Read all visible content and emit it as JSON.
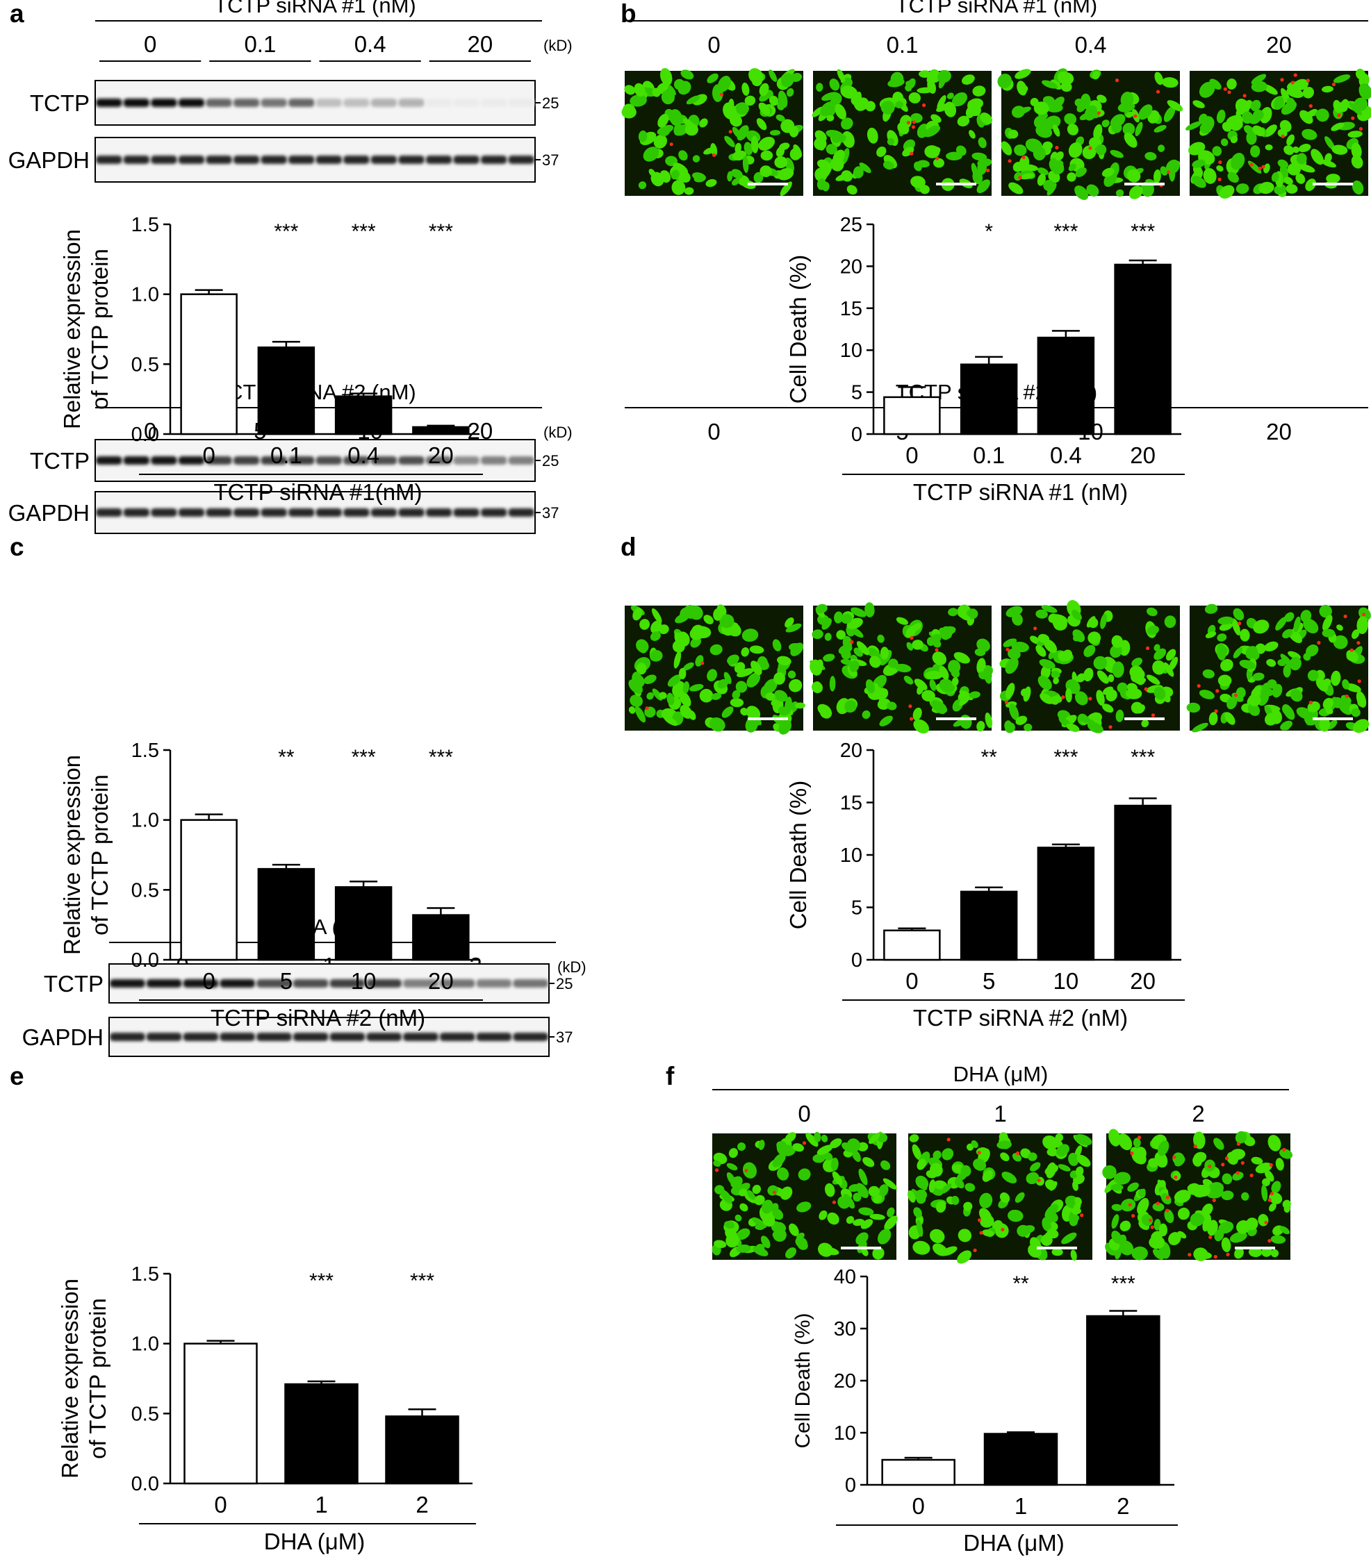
{
  "figure": {
    "panels": [
      {
        "letter": "a",
        "blot": {
          "header": "TCTP siRNA #1 (nM)",
          "groups": [
            "0",
            "0.1",
            "0.4",
            "20"
          ],
          "unit": "(kD)",
          "bands": [
            {
              "label": "TCTP",
              "marker": "25",
              "lane_intensity": [
                0.95,
                0.95,
                0.95,
                0.95,
                0.6,
                0.6,
                0.55,
                0.6,
                0.25,
                0.25,
                0.3,
                0.3,
                0.08,
                0.08,
                0.08,
                0.08
              ]
            },
            {
              "label": "GAPDH",
              "marker": "37",
              "lane_intensity": [
                0.85,
                0.85,
                0.85,
                0.85,
                0.85,
                0.85,
                0.85,
                0.85,
                0.85,
                0.85,
                0.85,
                0.85,
                0.85,
                0.85,
                0.85,
                0.85
              ]
            }
          ]
        },
        "chart_data": {
          "type": "bar",
          "categories": [
            "0",
            "0.1",
            "0.4",
            "20"
          ],
          "values": [
            1.0,
            0.62,
            0.27,
            0.05
          ],
          "errors": [
            0.03,
            0.04,
            0.02,
            0.01
          ],
          "fills": [
            "#ffffff",
            "#000000",
            "#000000",
            "#000000"
          ],
          "significance": [
            "",
            "***",
            "***",
            "***"
          ],
          "ylabel_lines": [
            "Relative expression",
            "of TCTP protein"
          ],
          "xlabel": "TCTP siRNA #1(nM)",
          "yticks": [
            "0.0",
            "0.5",
            "1.0",
            "1.5"
          ],
          "ylim": [
            0,
            1.5
          ]
        }
      },
      {
        "letter": "b",
        "images": {
          "header": "TCTP siRNA #1 (nM)",
          "labels": [
            "0",
            "0.1",
            "0.4",
            "20"
          ],
          "dead_fraction": [
            0.04,
            0.08,
            0.12,
            0.2
          ]
        },
        "chart_data": {
          "type": "bar",
          "categories": [
            "0",
            "0.1",
            "0.4",
            "20"
          ],
          "values": [
            4.4,
            8.3,
            11.5,
            20.2
          ],
          "errors": [
            1.2,
            0.9,
            0.8,
            0.5
          ],
          "fills": [
            "#ffffff",
            "#000000",
            "#000000",
            "#000000"
          ],
          "significance": [
            "",
            "*",
            "***",
            "***"
          ],
          "ylabel_lines": [
            "Cell Death (%)"
          ],
          "xlabel": "TCTP siRNA #1 (nM)",
          "yticks": [
            "0",
            "5",
            "10",
            "15",
            "20",
            "25"
          ],
          "ylim": [
            0,
            25
          ]
        }
      },
      {
        "letter": "c",
        "blot": {
          "header": "TCTP siRNA #2 (nM)",
          "groups": [
            "0",
            "5",
            "10",
            "20"
          ],
          "unit": "(kD)",
          "bands": [
            {
              "label": "TCTP",
              "marker": "25",
              "lane_intensity": [
                0.9,
                0.9,
                0.9,
                0.9,
                0.75,
                0.75,
                0.75,
                0.75,
                0.7,
                0.7,
                0.7,
                0.7,
                0.6,
                0.45,
                0.5,
                0.5
              ]
            },
            {
              "label": "GAPDH",
              "marker": "37",
              "lane_intensity": [
                0.85,
                0.85,
                0.85,
                0.85,
                0.85,
                0.85,
                0.85,
                0.85,
                0.85,
                0.85,
                0.85,
                0.85,
                0.85,
                0.85,
                0.85,
                0.85
              ]
            }
          ]
        },
        "chart_data": {
          "type": "bar",
          "categories": [
            "0",
            "5",
            "10",
            "20"
          ],
          "values": [
            1.0,
            0.65,
            0.52,
            0.32
          ],
          "errors": [
            0.04,
            0.03,
            0.04,
            0.05
          ],
          "fills": [
            "#ffffff",
            "#000000",
            "#000000",
            "#000000"
          ],
          "significance": [
            "",
            "**",
            "***",
            "***"
          ],
          "ylabel_lines": [
            "Relative expression",
            "of TCTP protein"
          ],
          "xlabel": "TCTP siRNA #2 (nM)",
          "yticks": [
            "0.0",
            "0.5",
            "1.0",
            "1.5"
          ],
          "ylim": [
            0,
            1.5
          ]
        }
      },
      {
        "letter": "d",
        "images": {
          "header": "TCTP siRNA #2 (nM)",
          "labels": [
            "0",
            "5",
            "10",
            "20"
          ],
          "dead_fraction": [
            0.02,
            0.06,
            0.1,
            0.14
          ]
        },
        "chart_data": {
          "type": "bar",
          "categories": [
            "0",
            "5",
            "10",
            "20"
          ],
          "values": [
            2.8,
            6.5,
            10.7,
            14.7
          ],
          "errors": [
            0.2,
            0.4,
            0.3,
            0.7
          ],
          "fills": [
            "#ffffff",
            "#000000",
            "#000000",
            "#000000"
          ],
          "significance": [
            "",
            "**",
            "***",
            "***"
          ],
          "ylabel_lines": [
            "Cell Death (%)"
          ],
          "xlabel": "TCTP siRNA #2 (nM)",
          "yticks": [
            "0",
            "5",
            "10",
            "15",
            "20"
          ],
          "ylim": [
            0,
            20
          ]
        }
      },
      {
        "letter": "e",
        "blot": {
          "header": "DHA (μM)",
          "groups": [
            "0",
            "1",
            "2"
          ],
          "unit": "(kD)",
          "bands": [
            {
              "label": "TCTP",
              "marker": "25",
              "lane_intensity": [
                0.9,
                0.9,
                0.9,
                0.9,
                0.7,
                0.7,
                0.75,
                0.75,
                0.5,
                0.55,
                0.5,
                0.55
              ]
            },
            {
              "label": "GAPDH",
              "marker": "37",
              "lane_intensity": [
                0.85,
                0.85,
                0.85,
                0.85,
                0.85,
                0.85,
                0.85,
                0.85,
                0.85,
                0.85,
                0.85,
                0.85
              ]
            }
          ]
        },
        "chart_data": {
          "type": "bar",
          "categories": [
            "0",
            "1",
            "2"
          ],
          "values": [
            1.0,
            0.71,
            0.48
          ],
          "errors": [
            0.02,
            0.02,
            0.05
          ],
          "fills": [
            "#ffffff",
            "#000000",
            "#000000"
          ],
          "significance": [
            "",
            "***",
            "***"
          ],
          "ylabel_lines": [
            "Relative expression",
            "of TCTP protein"
          ],
          "xlabel": "DHA (μM)",
          "yticks": [
            "0.0",
            "0.5",
            "1.0",
            "1.5"
          ],
          "ylim": [
            0,
            1.5
          ]
        }
      },
      {
        "letter": "f",
        "images": {
          "header": "DHA (μM)",
          "labels": [
            "0",
            "1",
            "2"
          ],
          "dead_fraction": [
            0.05,
            0.1,
            0.33
          ]
        },
        "chart_data": {
          "type": "bar",
          "categories": [
            "0",
            "1",
            "2"
          ],
          "values": [
            4.8,
            9.8,
            32.4
          ],
          "errors": [
            0.4,
            0.3,
            1.0
          ],
          "fills": [
            "#ffffff",
            "#000000",
            "#000000"
          ],
          "significance": [
            "",
            "**",
            "***"
          ],
          "ylabel_lines": [
            "Cell Death (%)"
          ],
          "xlabel": "DHA (μM)",
          "yticks": [
            "0",
            "10",
            "20",
            "30",
            "40"
          ],
          "ylim": [
            0,
            40
          ]
        }
      }
    ]
  }
}
